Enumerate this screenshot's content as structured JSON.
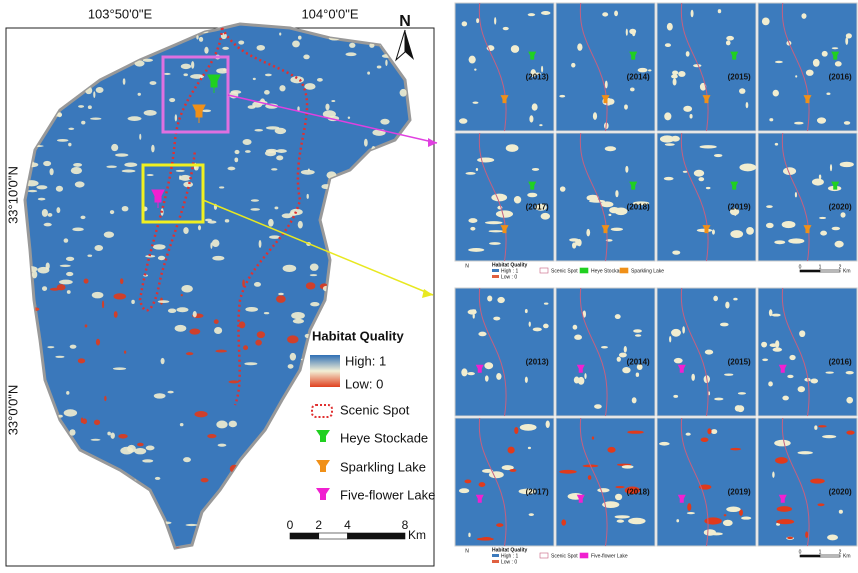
{
  "main_map": {
    "lon_labels": [
      "103°50'0\"E",
      "104°0'0\"E"
    ],
    "lat_labels": [
      "33°10'0\"N",
      "33°0'0\"N"
    ],
    "north": "N",
    "legend": {
      "title": "Habitat Quality",
      "high": "High: 1",
      "low": "Low: 0",
      "items": [
        "Scenic Spot",
        "Heye Stockade",
        "Sparkling Lake",
        "Five-flower Lake"
      ]
    },
    "scale": {
      "ticks": [
        0,
        2,
        4,
        8
      ],
      "unit": "Km"
    }
  },
  "panel_groups": [
    {
      "years": [
        "(2013)",
        "(2014)",
        "(2015)",
        "(2016)",
        "(2017)",
        "(2018)",
        "(2019)",
        "(2020)"
      ],
      "legend": {
        "title": "Habitat Quality",
        "high": "High : 1",
        "low": "Low : 0",
        "items": [
          "Scenic Spot",
          "Heye Stockade",
          "Sparkling Lake"
        ]
      },
      "scale": {
        "ticks": [
          0,
          1,
          2
        ],
        "unit": "Km"
      }
    },
    {
      "years": [
        "(2013)",
        "(2014)",
        "(2015)",
        "(2016)",
        "(2017)",
        "(2018)",
        "(2019)",
        "(2020)"
      ],
      "legend": {
        "title": "Habitat Quality",
        "high": "High : 1",
        "low": "Low : 0",
        "items": [
          "Scenic Spot",
          "Five-flower Lake"
        ]
      },
      "scale": {
        "ticks": [
          0,
          1,
          2
        ],
        "unit": "Km"
      }
    }
  ]
}
